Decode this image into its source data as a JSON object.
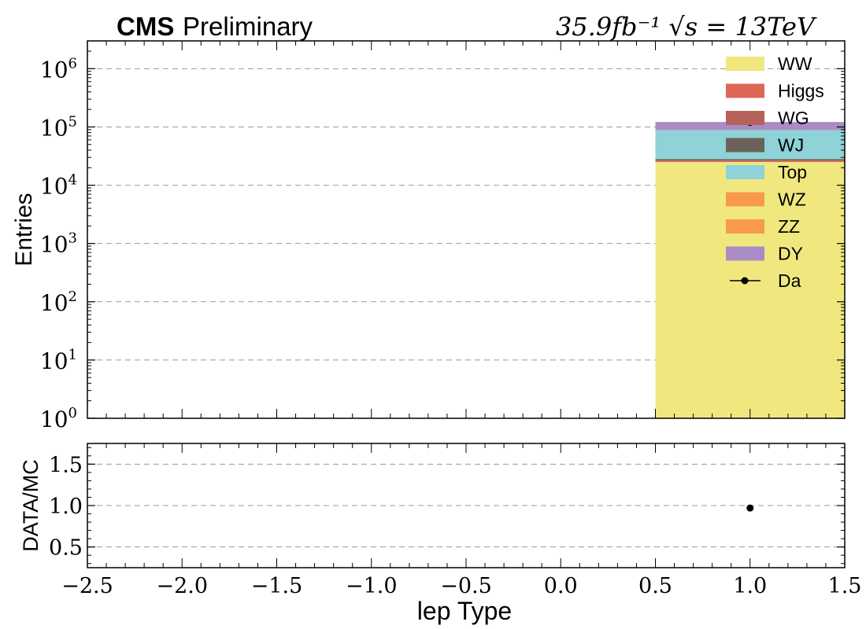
{
  "header": {
    "experiment": "CMS",
    "status": "Preliminary",
    "lumi_energy": "35.9fb⁻¹ √s = 13TeV"
  },
  "chart_data": [
    {
      "type": "bar",
      "stacked": true,
      "ylabel": "Entries",
      "yscale": "log",
      "ylim": [
        1,
        3000000
      ],
      "xlim": [
        -2.5,
        1.5
      ],
      "y_ticks": [
        {
          "base": "10",
          "exp": "0",
          "value": 1
        },
        {
          "base": "10",
          "exp": "1",
          "value": 10
        },
        {
          "base": "10",
          "exp": "2",
          "value": 100
        },
        {
          "base": "10",
          "exp": "3",
          "value": 1000
        },
        {
          "base": "10",
          "exp": "4",
          "value": 10000
        },
        {
          "base": "10",
          "exp": "5",
          "value": 100000
        },
        {
          "base": "10",
          "exp": "6",
          "value": 1000000
        }
      ],
      "grid": true,
      "bins": [
        {
          "low": 0.5,
          "high": 1.5
        }
      ],
      "series": [
        {
          "name": "WW",
          "color": "#f0e87f",
          "values": [
            25000
          ]
        },
        {
          "name": "Higgs",
          "color": "#dd6655",
          "values": [
            1000
          ]
        },
        {
          "name": "WG",
          "color": "#b6625a",
          "values": [
            700
          ]
        },
        {
          "name": "WJ",
          "color": "#6b6259",
          "values": [
            1500
          ]
        },
        {
          "name": "Top",
          "color": "#8fd3d8",
          "values": [
            60000
          ]
        },
        {
          "name": "WZ",
          "color": "#f89a4a",
          "values": [
            300
          ]
        },
        {
          "name": "ZZ",
          "color": "#f89a4a",
          "values": [
            150
          ]
        },
        {
          "name": "DY",
          "color": "#a98cc5",
          "values": [
            33000
          ]
        }
      ],
      "data": {
        "name": "Da",
        "x": [
          1.0
        ],
        "y": [
          120000
        ]
      },
      "legend_placement": "top-right"
    },
    {
      "type": "scatter",
      "ylabel": "DATA/MC",
      "xlabel": "lep Type",
      "ylim": [
        0.25,
        1.75
      ],
      "xlim": [
        -2.5,
        1.5
      ],
      "y_ticks": [
        "0.5",
        "1.0",
        "1.5"
      ],
      "x_ticks": [
        "−2.5",
        "−2.0",
        "−1.5",
        "−1.0",
        "−0.5",
        "0.0",
        "0.5",
        "1.0",
        "1.5"
      ],
      "grid": true,
      "points": [
        {
          "x": 1.0,
          "y": 0.97
        }
      ]
    }
  ]
}
